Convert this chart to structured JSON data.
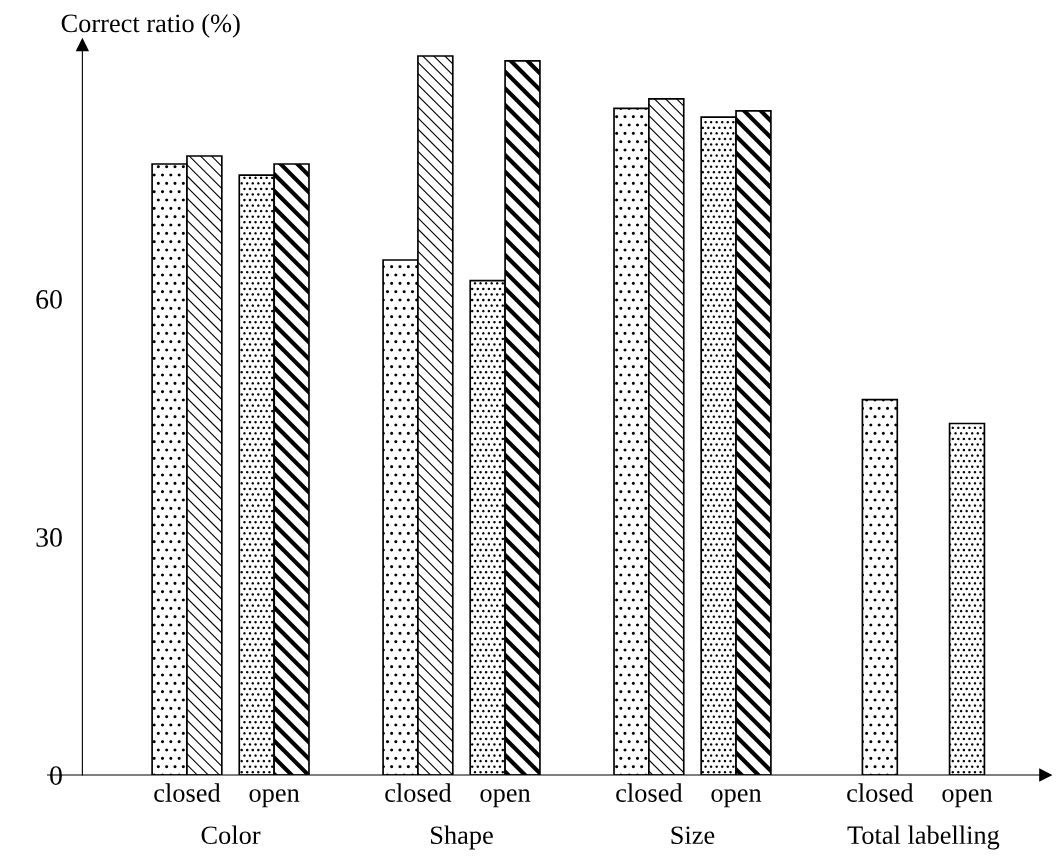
{
  "chart_data": {
    "type": "bar",
    "ylabel": "Correct ratio (%)",
    "categories": [
      "closed",
      "open",
      "closed",
      "open",
      "closed",
      "open",
      "closed",
      "open"
    ],
    "annotations": [
      "Color",
      "Shape",
      "Size",
      "Total labelling"
    ],
    "series": [
      {
        "color": "#000000",
        "values": [
          77.0,
          null,
          64.9,
          null,
          84.0,
          null,
          47.3,
          null
        ]
      },
      {
        "color": "#000000",
        "values": [
          78.0,
          null,
          90.6,
          null,
          85.2,
          null,
          null,
          null
        ]
      },
      {
        "color": "#000000",
        "values": [
          null,
          75.6,
          null,
          62.3,
          null,
          82.9,
          null,
          44.3
        ]
      },
      {
        "color": "#000000",
        "values": [
          null,
          77.0,
          null,
          90.0,
          null,
          83.7,
          null,
          null
        ]
      }
    ],
    "ylim": [
      0,
      92
    ],
    "yticks": [
      0,
      30,
      60
    ],
    "grid": false,
    "legend": false
  }
}
